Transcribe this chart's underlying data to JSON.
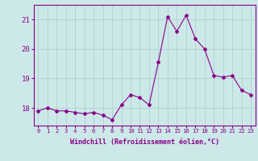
{
  "x": [
    0,
    1,
    2,
    3,
    4,
    5,
    6,
    7,
    8,
    9,
    10,
    11,
    12,
    13,
    14,
    15,
    16,
    17,
    18,
    19,
    20,
    21,
    22,
    23
  ],
  "y": [
    17.9,
    18.0,
    17.9,
    17.9,
    17.85,
    17.8,
    17.85,
    17.75,
    17.6,
    18.1,
    18.45,
    18.35,
    18.1,
    19.55,
    21.1,
    20.6,
    21.15,
    20.35,
    20.0,
    19.1,
    19.05,
    19.1,
    18.6,
    18.45
  ],
  "line_color": "#880088",
  "marker": "D",
  "marker_size": 2,
  "bg_color": "#cce8e8",
  "grid_color": "#aacccc",
  "xlabel": "Windchill (Refroidissement éolien,°C)",
  "ylabel_ticks": [
    18,
    19,
    20,
    21
  ],
  "xlim": [
    -0.5,
    23.5
  ],
  "ylim": [
    17.4,
    21.5
  ],
  "tick_color": "#880088",
  "spine_color": "#880088",
  "xtick_fontsize": 5.2,
  "ytick_fontsize": 6.5,
  "xlabel_fontsize": 6.0
}
